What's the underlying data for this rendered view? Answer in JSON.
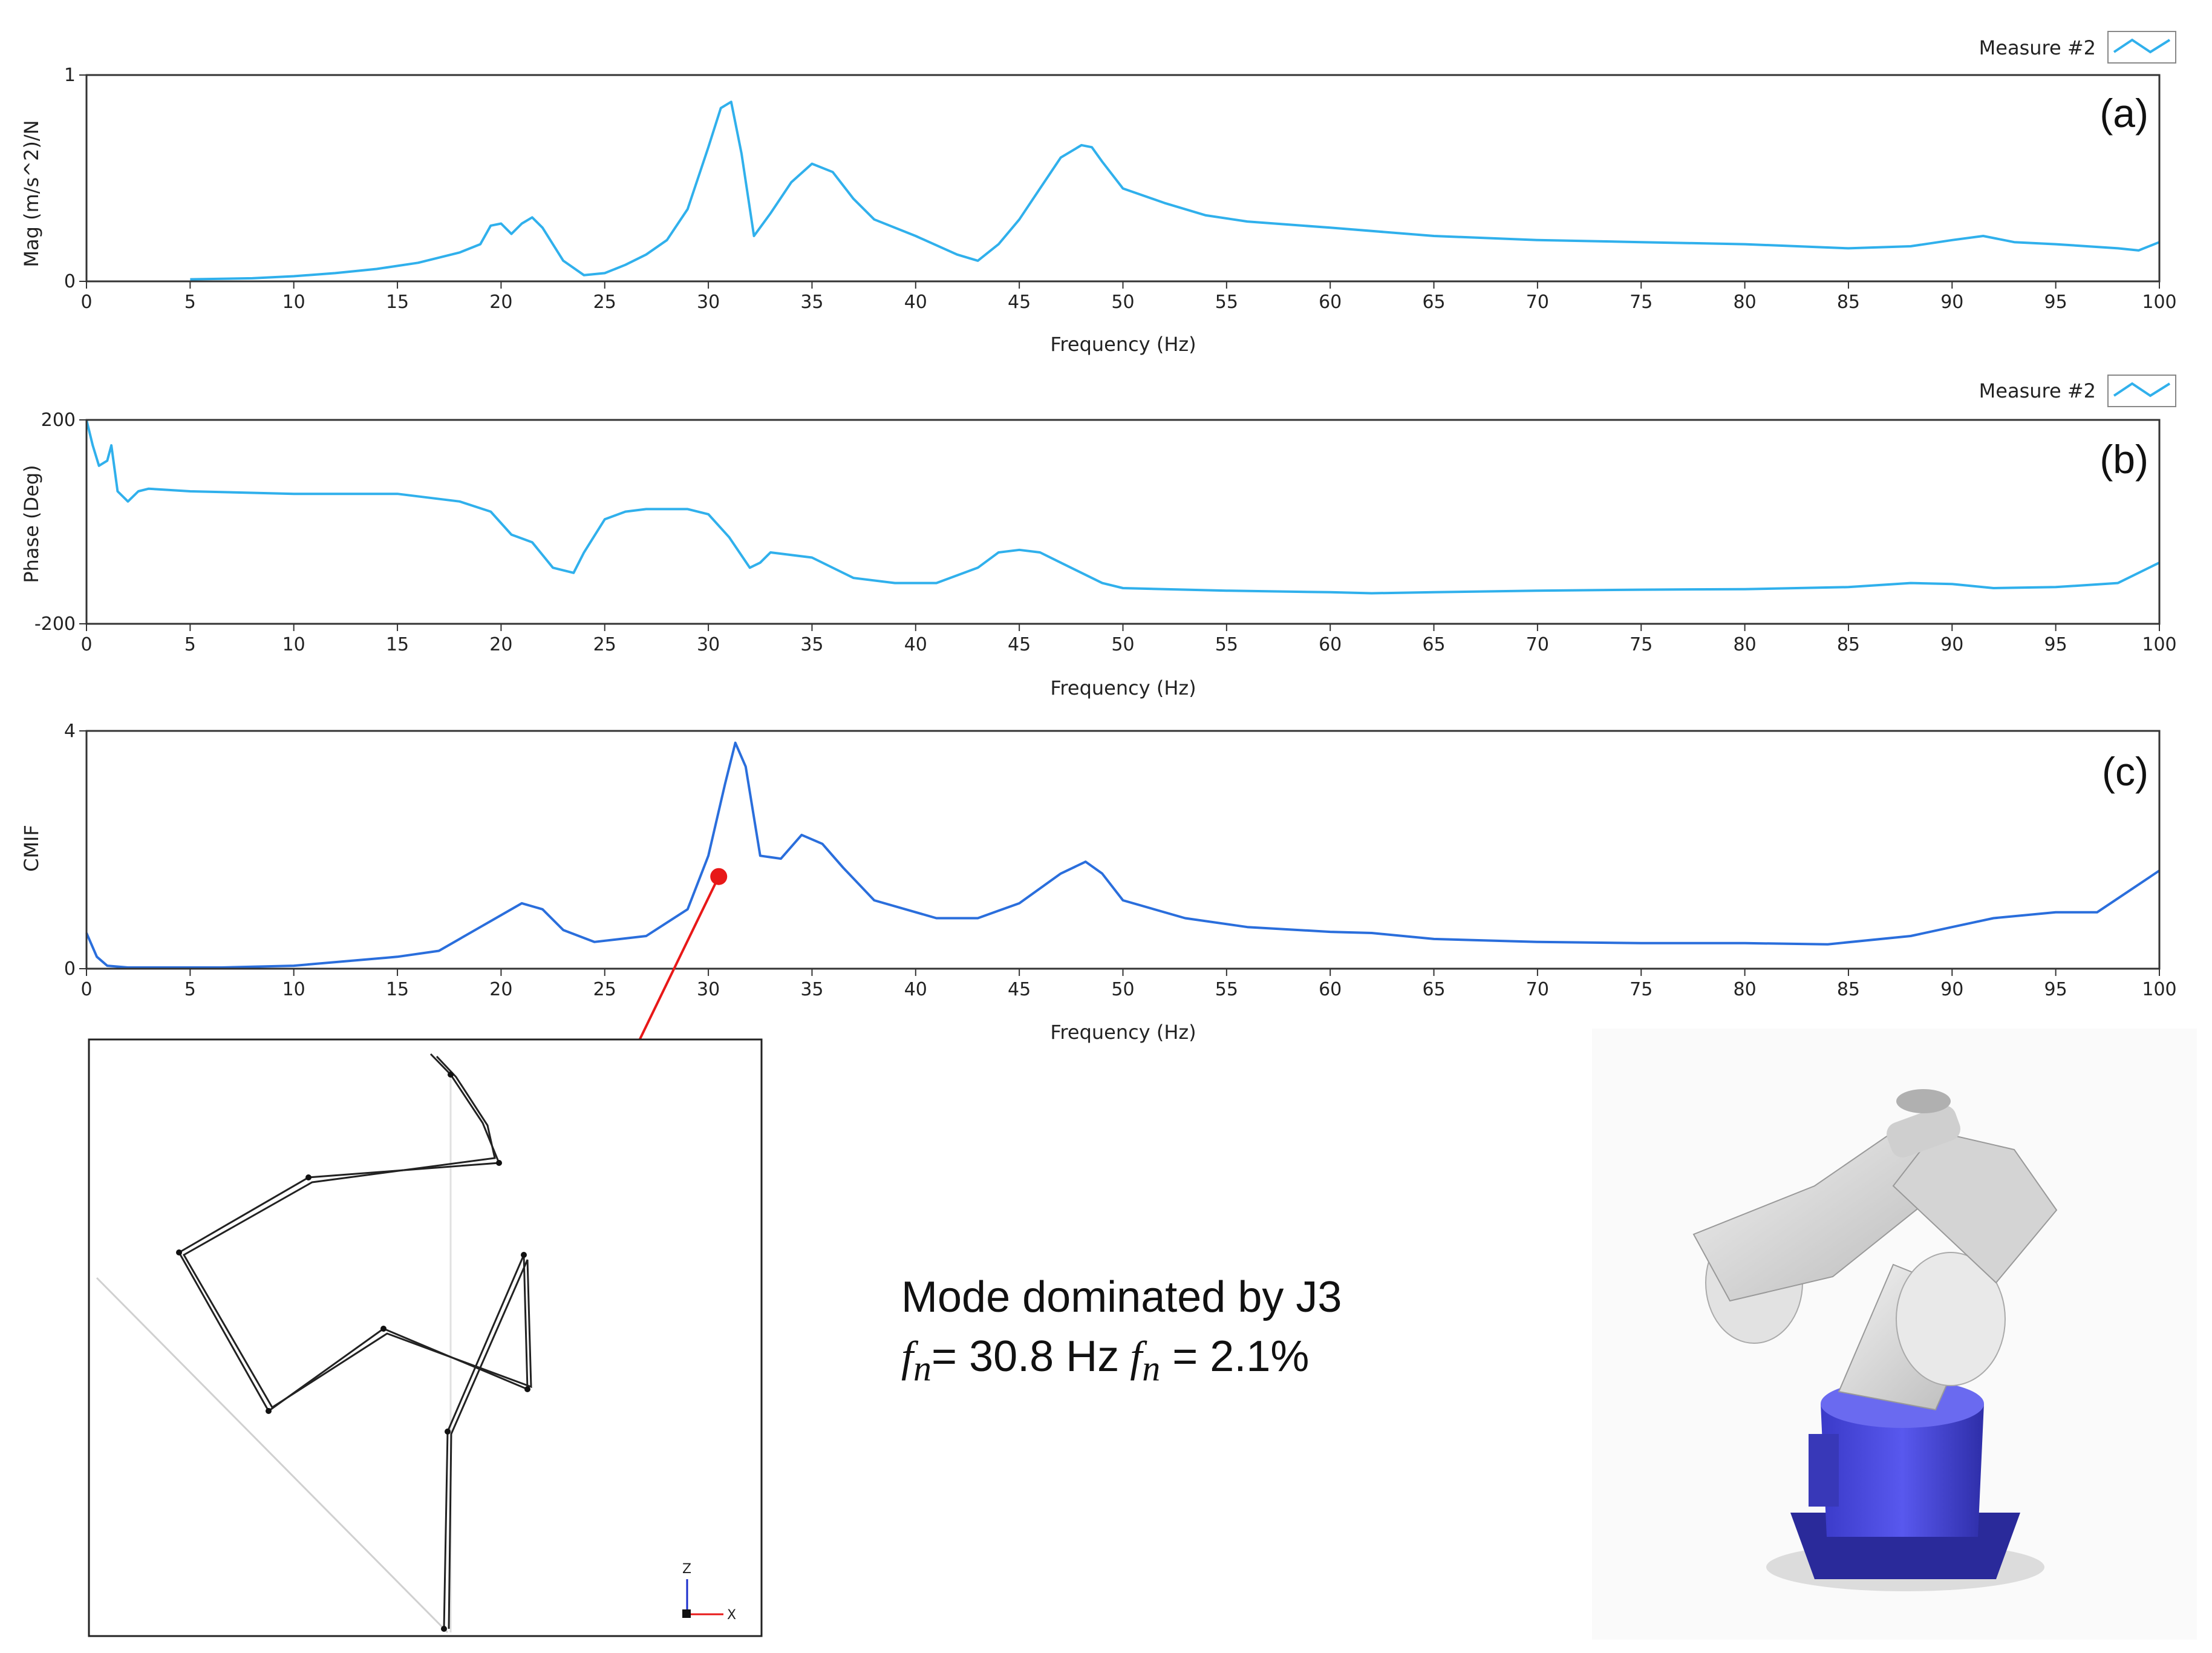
{
  "charts": {
    "legend_label": "Measure #2",
    "xlabel_top": "Frequency (Hz)",
    "xlabel_mid": "Frequency (Hz)",
    "xlabel_bottom": "Frequency (Hz)",
    "colors": {
      "mag": "#30b0ec",
      "phase": "#30b0ec",
      "cmif": "#2a6edc",
      "axis": "#333333"
    }
  },
  "chart_data": [
    {
      "type": "line",
      "panel": "(a)",
      "ylabel": "Mag  (m/s^2)/N",
      "xlim": [
        0,
        100
      ],
      "ylim": [
        0,
        1
      ],
      "xticks": [
        0,
        5,
        10,
        15,
        20,
        25,
        30,
        35,
        40,
        45,
        50,
        55,
        60,
        65,
        70,
        75,
        80,
        85,
        90,
        95,
        100
      ],
      "yticks": [
        0,
        1
      ],
      "series": [
        {
          "name": "Measure #2",
          "points": [
            [
              5,
              0.01
            ],
            [
              8,
              0.015
            ],
            [
              10,
              0.025
            ],
            [
              12,
              0.04
            ],
            [
              14,
              0.06
            ],
            [
              16,
              0.09
            ],
            [
              18,
              0.14
            ],
            [
              19,
              0.18
            ],
            [
              19.5,
              0.27
            ],
            [
              20,
              0.28
            ],
            [
              20.5,
              0.23
            ],
            [
              21,
              0.28
            ],
            [
              21.5,
              0.31
            ],
            [
              22,
              0.26
            ],
            [
              23,
              0.1
            ],
            [
              24,
              0.03
            ],
            [
              25,
              0.04
            ],
            [
              26,
              0.08
            ],
            [
              27,
              0.13
            ],
            [
              28,
              0.2
            ],
            [
              29,
              0.35
            ],
            [
              30,
              0.65
            ],
            [
              30.6,
              0.84
            ],
            [
              31.1,
              0.87
            ],
            [
              31.6,
              0.62
            ],
            [
              32.2,
              0.22
            ],
            [
              33,
              0.33
            ],
            [
              34,
              0.48
            ],
            [
              35,
              0.57
            ],
            [
              36,
              0.53
            ],
            [
              37,
              0.4
            ],
            [
              38,
              0.3
            ],
            [
              40,
              0.22
            ],
            [
              42,
              0.13
            ],
            [
              43,
              0.1
            ],
            [
              44,
              0.18
            ],
            [
              45,
              0.3
            ],
            [
              46,
              0.45
            ],
            [
              47,
              0.6
            ],
            [
              48,
              0.66
            ],
            [
              48.5,
              0.65
            ],
            [
              49,
              0.58
            ],
            [
              50,
              0.45
            ],
            [
              52,
              0.38
            ],
            [
              54,
              0.32
            ],
            [
              56,
              0.29
            ],
            [
              60,
              0.26
            ],
            [
              65,
              0.22
            ],
            [
              70,
              0.2
            ],
            [
              75,
              0.19
            ],
            [
              80,
              0.18
            ],
            [
              85,
              0.16
            ],
            [
              88,
              0.17
            ],
            [
              90,
              0.2
            ],
            [
              91.5,
              0.22
            ],
            [
              93,
              0.19
            ],
            [
              95,
              0.18
            ],
            [
              98,
              0.16
            ],
            [
              99,
              0.15
            ],
            [
              100,
              0.19
            ]
          ]
        }
      ]
    },
    {
      "type": "line",
      "panel": "(b)",
      "ylabel": "Phase (Deg)",
      "xlim": [
        0,
        100
      ],
      "ylim": [
        -200,
        200
      ],
      "xticks": [
        0,
        5,
        10,
        15,
        20,
        25,
        30,
        35,
        40,
        45,
        50,
        55,
        60,
        65,
        70,
        75,
        80,
        85,
        90,
        95,
        100
      ],
      "yticks": [
        -200,
        200
      ],
      "series": [
        {
          "name": "Measure #2",
          "points": [
            [
              0,
              200
            ],
            [
              0.3,
              150
            ],
            [
              0.6,
              110
            ],
            [
              1,
              120
            ],
            [
              1.2,
              150
            ],
            [
              1.5,
              60
            ],
            [
              2,
              40
            ],
            [
              2.5,
              60
            ],
            [
              3,
              65
            ],
            [
              5,
              60
            ],
            [
              10,
              55
            ],
            [
              15,
              55
            ],
            [
              18,
              40
            ],
            [
              19.5,
              20
            ],
            [
              20.5,
              -25
            ],
            [
              21.5,
              -40
            ],
            [
              22.5,
              -90
            ],
            [
              23.5,
              -100
            ],
            [
              24,
              -60
            ],
            [
              25,
              5
            ],
            [
              26,
              20
            ],
            [
              27,
              25
            ],
            [
              29,
              25
            ],
            [
              30,
              15
            ],
            [
              31,
              -30
            ],
            [
              32,
              -90
            ],
            [
              32.5,
              -80
            ],
            [
              33,
              -60
            ],
            [
              35,
              -70
            ],
            [
              37,
              -110
            ],
            [
              39,
              -120
            ],
            [
              41,
              -120
            ],
            [
              43,
              -90
            ],
            [
              44,
              -60
            ],
            [
              45,
              -55
            ],
            [
              46,
              -60
            ],
            [
              47,
              -80
            ],
            [
              49,
              -120
            ],
            [
              50,
              -130
            ],
            [
              55,
              -135
            ],
            [
              60,
              -138
            ],
            [
              62,
              -140
            ],
            [
              65,
              -138
            ],
            [
              70,
              -135
            ],
            [
              75,
              -133
            ],
            [
              80,
              -132
            ],
            [
              85,
              -128
            ],
            [
              88,
              -120
            ],
            [
              90,
              -122
            ],
            [
              92,
              -130
            ],
            [
              95,
              -128
            ],
            [
              98,
              -120
            ],
            [
              100,
              -80
            ]
          ]
        }
      ]
    },
    {
      "type": "line",
      "panel": "(c)",
      "ylabel": "CMIF",
      "xlim": [
        0,
        100
      ],
      "ylim": [
        0,
        4
      ],
      "xticks": [
        0,
        5,
        10,
        15,
        20,
        25,
        30,
        35,
        40,
        45,
        50,
        55,
        60,
        65,
        70,
        75,
        80,
        85,
        90,
        95,
        100
      ],
      "yticks": [
        0,
        4
      ],
      "series": [
        {
          "name": "CMIF",
          "points": [
            [
              0,
              0.6
            ],
            [
              0.5,
              0.2
            ],
            [
              1,
              0.05
            ],
            [
              2,
              0.02
            ],
            [
              6.5,
              0.02
            ],
            [
              10,
              0.05
            ],
            [
              15,
              0.2
            ],
            [
              17,
              0.3
            ],
            [
              19,
              0.7
            ],
            [
              21,
              1.1
            ],
            [
              22,
              1.0
            ],
            [
              23,
              0.65
            ],
            [
              24.5,
              0.45
            ],
            [
              27,
              0.55
            ],
            [
              29,
              1.0
            ],
            [
              30,
              1.9
            ],
            [
              30.8,
              3.1
            ],
            [
              31.3,
              3.8
            ],
            [
              31.8,
              3.4
            ],
            [
              32.5,
              1.9
            ],
            [
              33.5,
              1.85
            ],
            [
              34.5,
              2.25
            ],
            [
              35.5,
              2.1
            ],
            [
              36.5,
              1.7
            ],
            [
              38,
              1.15
            ],
            [
              41,
              0.85
            ],
            [
              43,
              0.85
            ],
            [
              45,
              1.1
            ],
            [
              47,
              1.6
            ],
            [
              48.2,
              1.8
            ],
            [
              49,
              1.6
            ],
            [
              50,
              1.15
            ],
            [
              53,
              0.85
            ],
            [
              56,
              0.7
            ],
            [
              60,
              0.62
            ],
            [
              62,
              0.6
            ],
            [
              65,
              0.5
            ],
            [
              70,
              0.45
            ],
            [
              75,
              0.43
            ],
            [
              80,
              0.43
            ],
            [
              84,
              0.41
            ],
            [
              88,
              0.55
            ],
            [
              90,
              0.7
            ],
            [
              92,
              0.85
            ],
            [
              95,
              0.95
            ],
            [
              97,
              0.95
            ],
            [
              98.5,
              1.3
            ],
            [
              100,
              1.65
            ]
          ]
        }
      ]
    }
  ],
  "annotation": {
    "pick_frequency": 30.5,
    "pick_value": 1.55,
    "color": "#e81818"
  },
  "caption": {
    "line1": "Mode dominated  by J3",
    "fn_symbol": "f",
    "fn_sub": "n",
    "fn_value": "= 30.8 Hz",
    "damp_symbol": "f",
    "damp_sub": "n",
    "damp_value": " = 2.1%"
  },
  "mode_axes": {
    "z": "Z",
    "x": "X"
  }
}
